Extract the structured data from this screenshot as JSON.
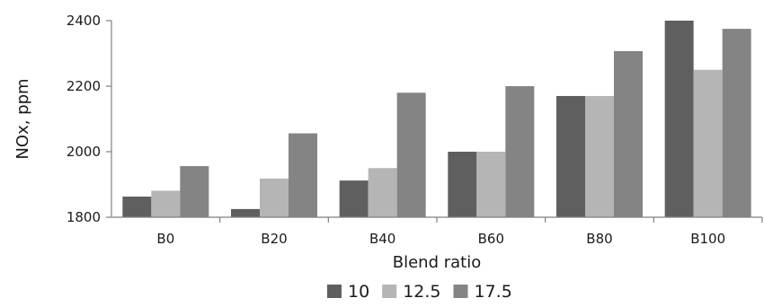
{
  "chart_data": {
    "type": "bar",
    "title": "",
    "xlabel": "Blend ratio",
    "ylabel": "NOx, ppm",
    "categories": [
      "B0",
      "B20",
      "B40",
      "B60",
      "B80",
      "B100"
    ],
    "series": [
      {
        "name": "10",
        "color": "#5f5f5f",
        "values": [
          1863,
          1825,
          1912,
          2000,
          2170,
          2400
        ]
      },
      {
        "name": "12.5",
        "color": "#b5b5b5",
        "values": [
          1881,
          1918,
          1950,
          2000,
          2170,
          2250
        ]
      },
      {
        "name": "17.5",
        "color": "#848484",
        "values": [
          1956,
          2056,
          2180,
          2200,
          2307,
          2375
        ]
      }
    ],
    "ylim": [
      1800,
      2400
    ],
    "yticks": [
      1800,
      2000,
      2200,
      2400
    ],
    "grid": false,
    "legend_position": "bottom"
  }
}
